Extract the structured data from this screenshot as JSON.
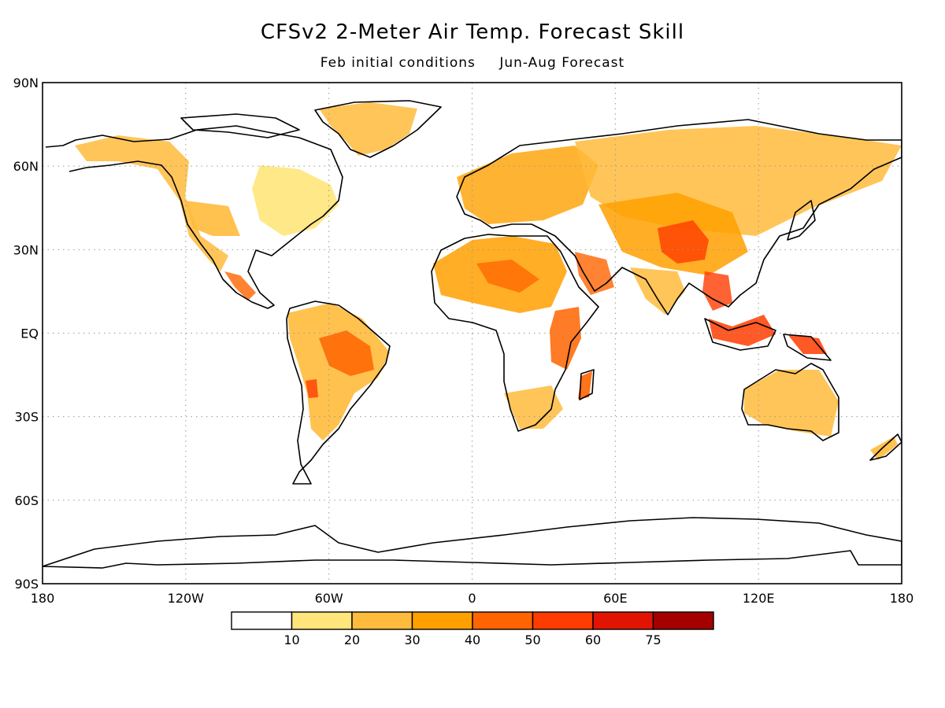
{
  "title": "CFSv2 2-Meter Air Temp. Forecast Skill",
  "subtitle": {
    "left": "Feb initial conditions",
    "right": "Jun-Aug Forecast"
  },
  "map": {
    "projection": "equirectangular",
    "lon_range": [
      -180,
      180
    ],
    "lat_range": [
      -90,
      90
    ],
    "grid": "dotted",
    "lat_ticks": [
      {
        "value": 90,
        "label": "90N"
      },
      {
        "value": 60,
        "label": "60N"
      },
      {
        "value": 30,
        "label": "30N"
      },
      {
        "value": 0,
        "label": "EQ"
      },
      {
        "value": -30,
        "label": "30S"
      },
      {
        "value": -60,
        "label": "60S"
      },
      {
        "value": -90,
        "label": "90S"
      }
    ],
    "lon_ticks": [
      {
        "value": -180,
        "label": "180"
      },
      {
        "value": -120,
        "label": "120W"
      },
      {
        "value": -60,
        "label": "60W"
      },
      {
        "value": 0,
        "label": "0"
      },
      {
        "value": 60,
        "label": "60E"
      },
      {
        "value": 120,
        "label": "120E"
      },
      {
        "value": 180,
        "label": "180"
      }
    ]
  },
  "colorbar": {
    "colors": [
      "#ffffff",
      "#ffe57a",
      "#ffbb3c",
      "#ffa000",
      "#ff6400",
      "#ff3c00",
      "#e01400",
      "#a50000"
    ],
    "labels": [
      "10",
      "20",
      "30",
      "40",
      "50",
      "60",
      "75"
    ]
  }
}
